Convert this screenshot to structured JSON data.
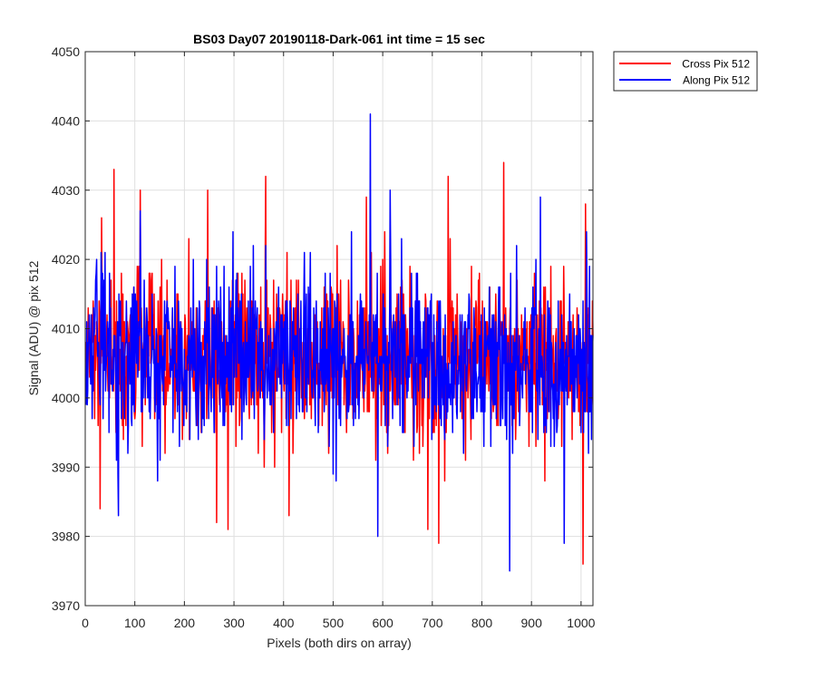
{
  "chart_data": {
    "type": "line",
    "title": "BS03 Day07 20190118-Dark-061 int time = 15 sec",
    "xlabel": "Pixels (both dirs on array)",
    "ylabel": "Signal (ADU) @ pix 512",
    "xlim": [
      0,
      1024
    ],
    "ylim": [
      3970,
      4050
    ],
    "xticks": [
      0,
      100,
      200,
      300,
      400,
      500,
      600,
      700,
      800,
      900,
      1000
    ],
    "yticks": [
      3970,
      3980,
      3990,
      4000,
      4010,
      4020,
      4030,
      4040,
      4050
    ],
    "grid": true,
    "legend_position": "outside-top-right",
    "series": [
      {
        "name": "Cross Pix 512",
        "color": "#ff0000",
        "mean": 4005.5,
        "noise_std": 6.0,
        "seed": 12345,
        "n_points": 1024,
        "features": [
          {
            "x": 29,
            "y": 3984
          },
          {
            "x": 32,
            "y": 4026
          },
          {
            "x": 57,
            "y": 4033
          },
          {
            "x": 110,
            "y": 4030
          },
          {
            "x": 246,
            "y": 4030
          },
          {
            "x": 264,
            "y": 3982
          },
          {
            "x": 287,
            "y": 3981
          },
          {
            "x": 363,
            "y": 4032
          },
          {
            "x": 410,
            "y": 3983
          },
          {
            "x": 566,
            "y": 4029
          },
          {
            "x": 690,
            "y": 3981
          },
          {
            "x": 712,
            "y": 3979
          },
          {
            "x": 731,
            "y": 4032
          },
          {
            "x": 843,
            "y": 4034
          },
          {
            "x": 1003,
            "y": 3976
          },
          {
            "x": 1008,
            "y": 4028
          }
        ]
      },
      {
        "name": "Along Pix 512",
        "color": "#0000ff",
        "mean": 4005.5,
        "noise_std": 6.0,
        "seed": 67890,
        "n_points": 1024,
        "features": [
          {
            "x": 66,
            "y": 3983
          },
          {
            "x": 110,
            "y": 4027
          },
          {
            "x": 574,
            "y": 4041
          },
          {
            "x": 589,
            "y": 3980
          },
          {
            "x": 614,
            "y": 4030
          },
          {
            "x": 855,
            "y": 3975
          },
          {
            "x": 917,
            "y": 4029
          },
          {
            "x": 965,
            "y": 3979
          }
        ]
      }
    ]
  }
}
